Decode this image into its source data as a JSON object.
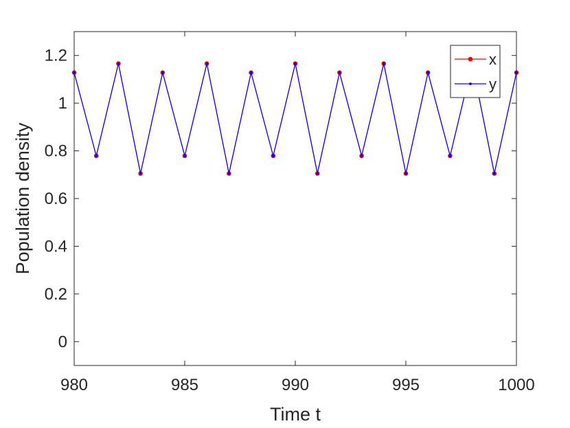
{
  "chart_data": {
    "type": "line",
    "xlabel": "Time t",
    "ylabel": "Population density",
    "xlim": [
      980,
      1000
    ],
    "ylim": [
      -0.1,
      1.3
    ],
    "xticks": [
      "980",
      "985",
      "990",
      "995",
      "1000"
    ],
    "yticks": [
      "0",
      "0.2",
      "0.4",
      "0.6",
      "0.8",
      "1",
      "1.2"
    ],
    "grid": false,
    "legend_position": "top-right",
    "x": [
      980,
      981,
      982,
      983,
      984,
      985,
      986,
      987,
      988,
      989,
      990,
      991,
      992,
      993,
      994,
      995,
      996,
      997,
      998,
      999,
      1000
    ],
    "series": [
      {
        "name": "x",
        "color": "#ff0000",
        "marker": "dot",
        "values": [
          1.128,
          0.779,
          1.166,
          0.705,
          1.128,
          0.779,
          1.166,
          0.705,
          1.128,
          0.779,
          1.166,
          0.705,
          1.128,
          0.779,
          1.166,
          0.705,
          1.128,
          0.779,
          1.166,
          0.705,
          1.128
        ]
      },
      {
        "name": "y",
        "color": "#0000ff",
        "marker": "small-dot",
        "values": [
          1.128,
          0.779,
          1.166,
          0.705,
          1.128,
          0.779,
          1.166,
          0.705,
          1.128,
          0.779,
          1.166,
          0.705,
          1.128,
          0.779,
          1.166,
          0.705,
          1.128,
          0.779,
          1.166,
          0.705,
          1.128
        ]
      }
    ]
  }
}
